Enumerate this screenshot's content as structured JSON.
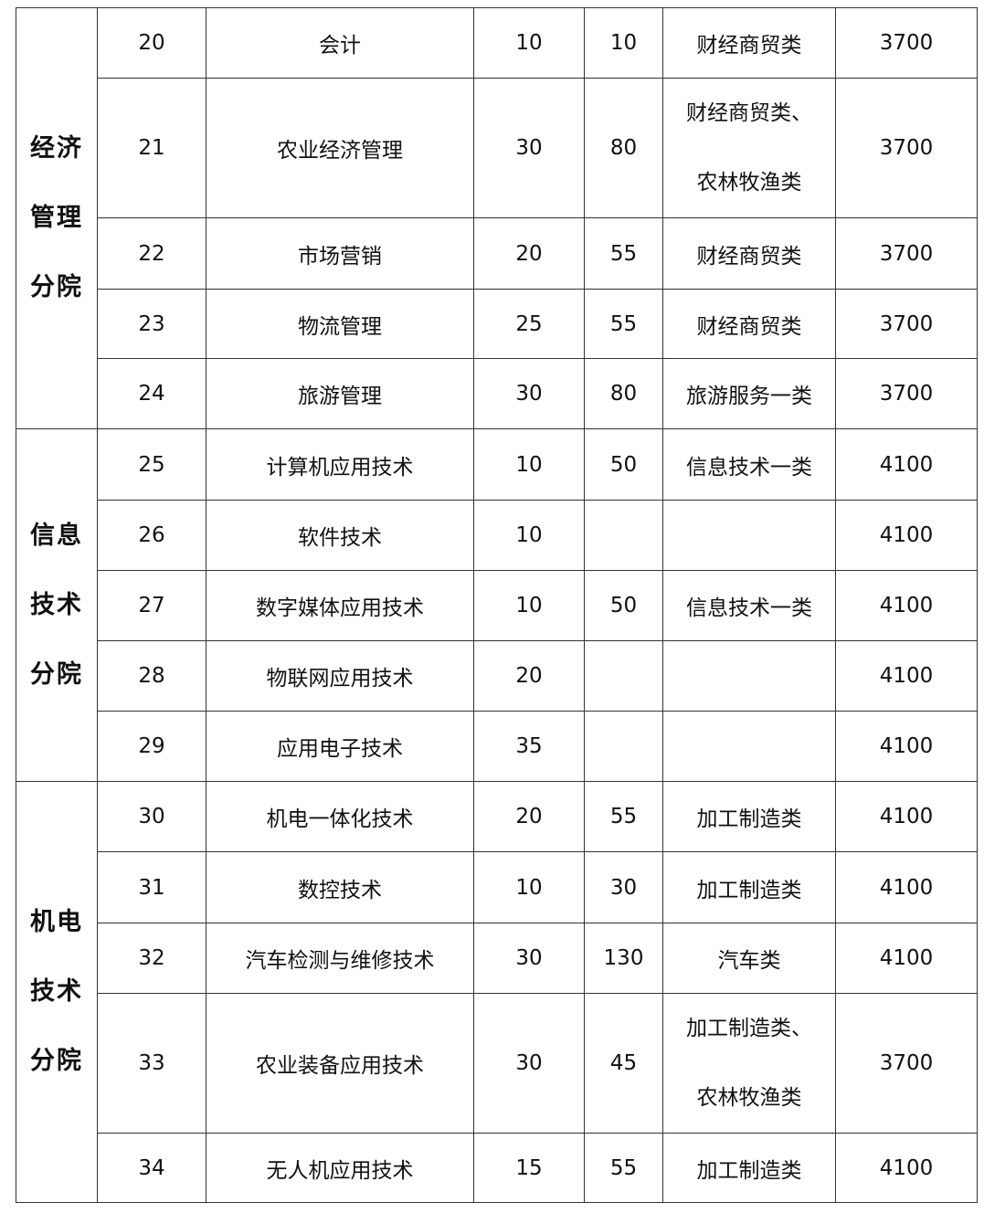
{
  "groups": [
    {
      "name": [
        "经济",
        "管理",
        "分院"
      ],
      "rows": [
        {
          "no": "20",
          "major": "会计",
          "a": "10",
          "b": "10",
          "cat": [
            "财经商贸类"
          ],
          "fee": "3700"
        },
        {
          "no": "21",
          "major": "农业经济管理",
          "a": "30",
          "b": "80",
          "cat": [
            "财经商贸类、",
            "农林牧渔类"
          ],
          "fee": "3700"
        },
        {
          "no": "22",
          "major": "市场营销",
          "a": "20",
          "b": "55",
          "cat": [
            "财经商贸类"
          ],
          "fee": "3700"
        },
        {
          "no": "23",
          "major": "物流管理",
          "a": "25",
          "b": "55",
          "cat": [
            "财经商贸类"
          ],
          "fee": "3700"
        },
        {
          "no": "24",
          "major": "旅游管理",
          "a": "30",
          "b": "80",
          "cat": [
            "旅游服务一类"
          ],
          "fee": "3700"
        }
      ]
    },
    {
      "name": [
        "信息",
        "技术",
        "分院"
      ],
      "rows": [
        {
          "no": "25",
          "major": "计算机应用技术",
          "a": "10",
          "b": "50",
          "cat": [
            "信息技术一类"
          ],
          "fee": "4100"
        },
        {
          "no": "26",
          "major": "软件技术",
          "a": "10",
          "b": "",
          "cat": [],
          "fee": "4100"
        },
        {
          "no": "27",
          "major": "数字媒体应用技术",
          "a": "10",
          "b": "50",
          "cat": [
            "信息技术一类"
          ],
          "fee": "4100"
        },
        {
          "no": "28",
          "major": "物联网应用技术",
          "a": "20",
          "b": "",
          "cat": [],
          "fee": "4100"
        },
        {
          "no": "29",
          "major": "应用电子技术",
          "a": "35",
          "b": "",
          "cat": [],
          "fee": "4100"
        }
      ]
    },
    {
      "name": [
        "机电",
        "技术",
        "分院"
      ],
      "rows": [
        {
          "no": "30",
          "major": "机电一体化技术",
          "a": "20",
          "b": "55",
          "cat": [
            "加工制造类"
          ],
          "fee": "4100"
        },
        {
          "no": "31",
          "major": "数控技术",
          "a": "10",
          "b": "30",
          "cat": [
            "加工制造类"
          ],
          "fee": "4100"
        },
        {
          "no": "32",
          "major": "汽车检测与维修技术",
          "a": "30",
          "b": "130",
          "cat": [
            "汽车类"
          ],
          "fee": "4100"
        },
        {
          "no": "33",
          "major": "农业装备应用技术",
          "a": "30",
          "b": "45",
          "cat": [
            "加工制造类、",
            "农林牧渔类"
          ],
          "fee": "3700"
        },
        {
          "no": "34",
          "major": "无人机应用技术",
          "a": "15",
          "b": "55",
          "cat": [
            "加工制造类"
          ],
          "fee": "4100"
        }
      ]
    }
  ]
}
